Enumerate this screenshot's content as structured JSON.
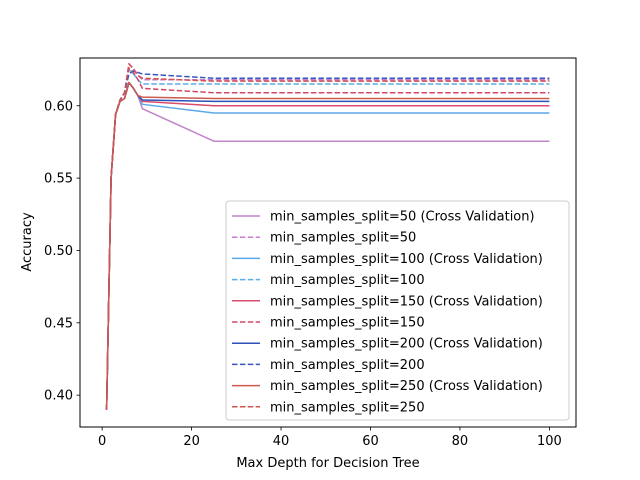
{
  "chart_data": {
    "type": "line",
    "title": "",
    "xlabel": "Max Depth for Decision Tree",
    "ylabel": "Accuracy",
    "xlim": [
      -4.95,
      105.95
    ],
    "ylim": [
      0.378,
      0.633
    ],
    "x_ticks": [
      0,
      20,
      40,
      60,
      80,
      100
    ],
    "y_ticks": [
      0.4,
      0.45,
      0.5,
      0.55,
      0.6
    ],
    "x_tick_labels": [
      "0",
      "20",
      "40",
      "60",
      "80",
      "100"
    ],
    "y_tick_labels": [
      "0.40",
      "0.45",
      "0.50",
      "0.55",
      "0.60"
    ],
    "grid": false,
    "legend_position": "lower-right",
    "series": [
      {
        "name": "min_samples_split=50 (Cross Validation)",
        "color": "#c084c8",
        "dashed": false,
        "x": [
          1,
          2,
          3,
          4,
          5,
          6,
          7,
          8,
          9,
          25,
          100
        ],
        "y": [
          0.39,
          0.55,
          0.594,
          0.603,
          0.605,
          0.616,
          0.612,
          0.607,
          0.598,
          0.5755,
          0.5755
        ]
      },
      {
        "name": "min_samples_split=50",
        "color": "#c87ed2",
        "dashed": true,
        "x": [
          1,
          2,
          3,
          4,
          5,
          6,
          7,
          8,
          9,
          25,
          100
        ],
        "y": [
          0.39,
          0.55,
          0.594,
          0.604,
          0.609,
          0.629,
          0.626,
          0.621,
          0.618,
          0.618,
          0.618
        ]
      },
      {
        "name": "min_samples_split=100 (Cross Validation)",
        "color": "#5aa8e8",
        "dashed": false,
        "x": [
          1,
          2,
          3,
          4,
          5,
          6,
          7,
          8,
          9,
          25,
          100
        ],
        "y": [
          0.39,
          0.55,
          0.594,
          0.603,
          0.605,
          0.616,
          0.612,
          0.607,
          0.601,
          0.595,
          0.595
        ]
      },
      {
        "name": "min_samples_split=100",
        "color": "#5aaee8",
        "dashed": true,
        "x": [
          1,
          2,
          3,
          4,
          5,
          6,
          7,
          8,
          9,
          25,
          100
        ],
        "y": [
          0.39,
          0.55,
          0.594,
          0.604,
          0.609,
          0.625,
          0.622,
          0.618,
          0.615,
          0.615,
          0.615
        ]
      },
      {
        "name": "min_samples_split=150 (Cross Validation)",
        "color": "#d84c6c",
        "dashed": false,
        "x": [
          1,
          2,
          3,
          4,
          5,
          6,
          7,
          8,
          9,
          25,
          100
        ],
        "y": [
          0.39,
          0.55,
          0.594,
          0.603,
          0.605,
          0.616,
          0.612,
          0.607,
          0.603,
          0.6,
          0.6
        ]
      },
      {
        "name": "min_samples_split=150",
        "color": "#d04a66",
        "dashed": true,
        "x": [
          1,
          2,
          3,
          4,
          5,
          6,
          7,
          8,
          9,
          25,
          100
        ],
        "y": [
          0.39,
          0.55,
          0.594,
          0.604,
          0.609,
          0.626,
          0.623,
          0.618,
          0.612,
          0.609,
          0.609
        ]
      },
      {
        "name": "min_samples_split=200 (Cross Validation)",
        "color": "#2c52b8",
        "dashed": false,
        "x": [
          1,
          2,
          3,
          4,
          5,
          6,
          7,
          8,
          9,
          25,
          100
        ],
        "y": [
          0.39,
          0.55,
          0.594,
          0.603,
          0.605,
          0.616,
          0.612,
          0.607,
          0.604,
          0.603,
          0.603
        ]
      },
      {
        "name": "min_samples_split=200",
        "color": "#3a56c0",
        "dashed": true,
        "x": [
          1,
          2,
          3,
          4,
          5,
          6,
          7,
          8,
          9,
          25,
          100
        ],
        "y": [
          0.39,
          0.55,
          0.594,
          0.604,
          0.609,
          0.622,
          0.624,
          0.623,
          0.622,
          0.619,
          0.619
        ]
      },
      {
        "name": "min_samples_split=250 (Cross Validation)",
        "color": "#cc5a4e",
        "dashed": false,
        "x": [
          1,
          2,
          3,
          4,
          5,
          6,
          7,
          8,
          9,
          25,
          100
        ],
        "y": [
          0.39,
          0.55,
          0.594,
          0.603,
          0.605,
          0.616,
          0.612,
          0.607,
          0.606,
          0.605,
          0.605
        ]
      },
      {
        "name": "min_samples_split=250",
        "color": "#d45450",
        "dashed": true,
        "x": [
          1,
          2,
          3,
          4,
          5,
          6,
          7,
          8,
          9,
          25,
          100
        ],
        "y": [
          0.39,
          0.55,
          0.594,
          0.604,
          0.609,
          0.629,
          0.625,
          0.621,
          0.619,
          0.617,
          0.617
        ]
      }
    ]
  }
}
